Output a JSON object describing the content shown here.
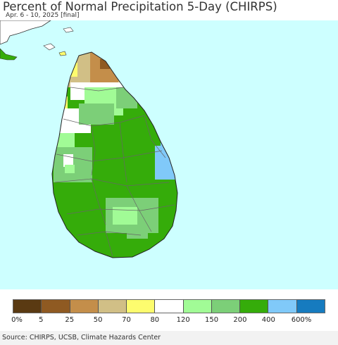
{
  "title": "Percent of Normal Precipitation 5-Day (CHIRPS)",
  "subtitle": "Apr. 6 - 10, 2025 [final]",
  "source": "Source: CHIRPS, UCSB, Climate Hazards Center",
  "colors": {
    "ocean": "#cdffff",
    "land_india": "#ffffff",
    "border": "#666666"
  },
  "legend": {
    "swatches": [
      {
        "color": "#5a3a12",
        "range": "0-5"
      },
      {
        "color": "#8f5a22",
        "range": "5-25"
      },
      {
        "color": "#c48e4a",
        "range": "25-50"
      },
      {
        "color": "#d1bf86",
        "range": "50-70"
      },
      {
        "color": "#fdfc6e",
        "range": "70-80"
      },
      {
        "color": "#ffffff",
        "range": "80-120"
      },
      {
        "color": "#a1fb96",
        "range": "120-150"
      },
      {
        "color": "#7ccf78",
        "range": "150-200"
      },
      {
        "color": "#35ac0a",
        "range": "200-400"
      },
      {
        "color": "#80c9f9",
        "range": "400-600"
      },
      {
        "color": "#167bbf",
        "range": ">600"
      }
    ],
    "ticks": [
      "0%",
      "5",
      "25",
      "50",
      "70",
      "80",
      "120",
      "150",
      "200",
      "400",
      "600%"
    ]
  }
}
